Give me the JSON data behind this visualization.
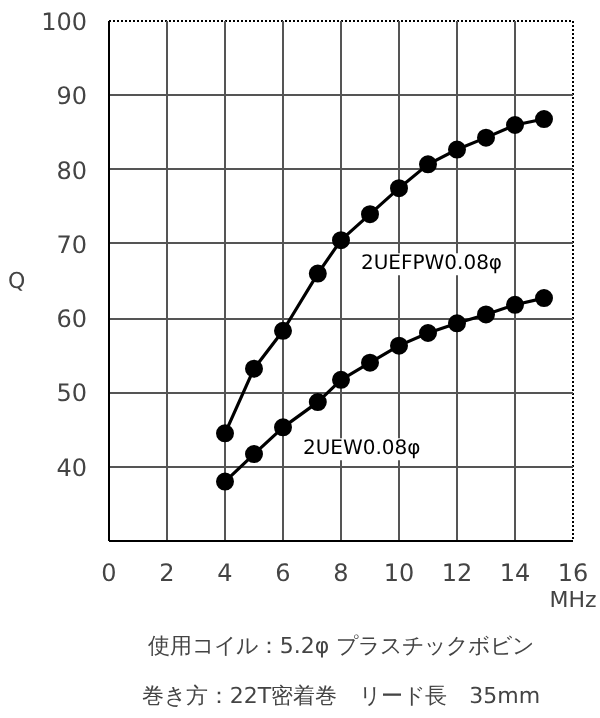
{
  "chart_data": {
    "type": "line",
    "xlabel": "MHz",
    "ylabel": "Q",
    "x": [
      4,
      5,
      6,
      7.2,
      8,
      9,
      10,
      11,
      12,
      13,
      14,
      15
    ],
    "series": [
      {
        "name": "2UEFPW0.08φ",
        "color": "#000000",
        "values": [
          44.5,
          53.2,
          58.3,
          66,
          70.5,
          74,
          77.5,
          80.7,
          82.7,
          84.3,
          86,
          86.8
        ]
      },
      {
        "name": "2UEW0.08φ",
        "color": "#000000",
        "values": [
          38,
          41.7,
          45.3,
          48.7,
          51.7,
          54,
          56.3,
          58,
          59.3,
          60.5,
          61.8,
          62.7
        ]
      }
    ],
    "xlim": [
      0,
      16
    ],
    "ylim": [
      30,
      100
    ],
    "xticks": [
      0,
      2,
      4,
      6,
      8,
      10,
      12,
      14,
      16
    ],
    "yticks": [
      40,
      50,
      60,
      70,
      80,
      90,
      100
    ],
    "grid": true,
    "marker": "circle",
    "line_style": "solid",
    "annotations": [
      "使用コイル：5.2φ プラスチックボビン",
      "巻き方：22T密着巻　リード長　35mm"
    ]
  }
}
